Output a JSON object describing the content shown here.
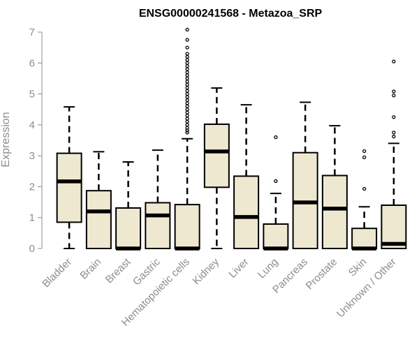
{
  "chart_data": {
    "type": "boxplot",
    "title": "ENSG00000241568 - Metazoa_SRP",
    "xlabel": "",
    "ylabel": "Expression",
    "ylim": [
      0,
      7
    ],
    "yticks": [
      0,
      1,
      2,
      3,
      4,
      5,
      6,
      7
    ],
    "box_fill": "#efe8d1",
    "box_stroke": "#000000",
    "axis_color": "#8c8c8c",
    "categories": [
      "Bladder",
      "Brain",
      "Breast",
      "Gastric",
      "Hematopoietic cells",
      "Kidney",
      "Liver",
      "Lung",
      "Pancreas",
      "Prostate",
      "Skin",
      "Unknown / Other"
    ],
    "boxes": [
      {
        "name": "Bladder",
        "min": 0,
        "q1": 0.85,
        "median": 2.17,
        "q3": 3.08,
        "max": 4.58,
        "outliers": []
      },
      {
        "name": "Brain",
        "min": 0,
        "q1": 0,
        "median": 1.2,
        "q3": 1.87,
        "max": 3.13,
        "outliers": []
      },
      {
        "name": "Breast",
        "min": 0,
        "q1": 0,
        "median": 0,
        "q3": 1.31,
        "max": 2.8,
        "outliers": []
      },
      {
        "name": "Gastric",
        "min": 0,
        "q1": 0,
        "median": 1.07,
        "q3": 1.48,
        "max": 3.18,
        "outliers": []
      },
      {
        "name": "Hematopoietic cells",
        "min": 0,
        "q1": 0,
        "median": 0,
        "q3": 1.42,
        "max": 3.55,
        "outliers": [
          3.75,
          3.82,
          3.9,
          4.0,
          4.1,
          4.2,
          4.3,
          4.4,
          4.5,
          4.6,
          4.7,
          4.8,
          4.9,
          5.0,
          5.1,
          5.2,
          5.3,
          5.4,
          5.5,
          5.6,
          5.7,
          5.8,
          5.9,
          6.0,
          6.1,
          6.2,
          6.3,
          6.5,
          6.75,
          7.08
        ]
      },
      {
        "name": "Kidney",
        "min": 0,
        "q1": 1.98,
        "median": 3.14,
        "q3": 4.02,
        "max": 5.19,
        "outliers": []
      },
      {
        "name": "Liver",
        "min": 0,
        "q1": 0,
        "median": 1.02,
        "q3": 2.34,
        "max": 4.65,
        "outliers": []
      },
      {
        "name": "Lung",
        "min": 0,
        "q1": 0,
        "median": 0,
        "q3": 0.79,
        "max": 1.78,
        "outliers": [
          2.18,
          3.6
        ]
      },
      {
        "name": "Pancreas",
        "min": 0,
        "q1": 0,
        "median": 1.49,
        "q3": 3.1,
        "max": 4.73,
        "outliers": []
      },
      {
        "name": "Prostate",
        "min": 0,
        "q1": 0,
        "median": 1.29,
        "q3": 2.36,
        "max": 3.97,
        "outliers": []
      },
      {
        "name": "Skin",
        "min": 0,
        "q1": 0,
        "median": 0,
        "q3": 0.65,
        "max": 1.35,
        "outliers": [
          1.93,
          2.95,
          3.15
        ]
      },
      {
        "name": "Unknown / Other",
        "min": 0,
        "q1": 0,
        "median": 0.15,
        "q3": 1.4,
        "max": 3.4,
        "outliers": [
          3.62,
          3.75,
          4.25,
          4.95,
          5.08,
          6.05
        ]
      }
    ]
  }
}
